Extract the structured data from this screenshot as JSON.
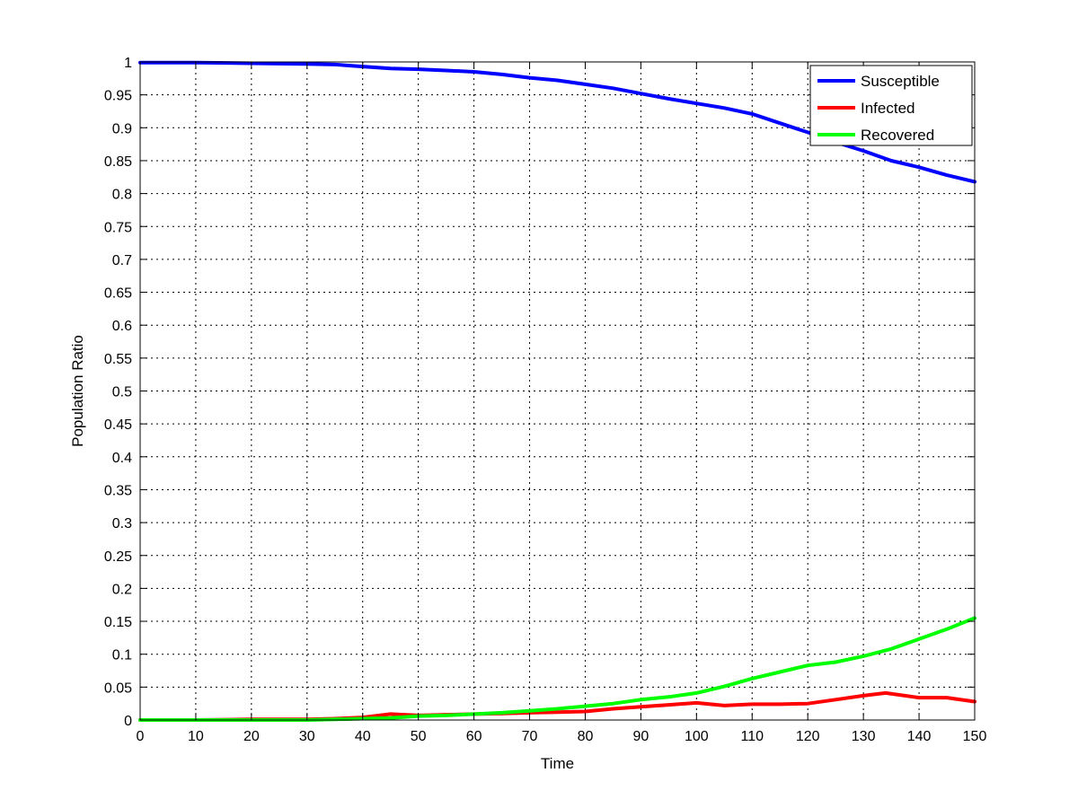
{
  "chart_data": {
    "type": "line",
    "title": "",
    "xlabel": "Time",
    "ylabel": "Population Ratio",
    "xlim": [
      0,
      150
    ],
    "ylim": [
      0,
      1
    ],
    "x_ticks": [
      0,
      10,
      20,
      30,
      40,
      50,
      60,
      70,
      80,
      90,
      100,
      110,
      120,
      130,
      140,
      150
    ],
    "y_ticks": [
      0,
      0.05,
      0.1,
      0.15,
      0.2,
      0.25,
      0.3,
      0.35,
      0.4,
      0.45,
      0.5,
      0.55,
      0.6,
      0.65,
      0.7,
      0.75,
      0.8,
      0.85,
      0.9,
      0.95,
      1
    ],
    "x_tick_labels": [
      "0",
      "10",
      "20",
      "30",
      "40",
      "50",
      "60",
      "70",
      "80",
      "90",
      "100",
      "110",
      "120",
      "130",
      "140",
      "150"
    ],
    "y_tick_labels": [
      "0",
      "0.05",
      "0.1",
      "0.15",
      "0.2",
      "0.25",
      "0.3",
      "0.35",
      "0.4",
      "0.45",
      "0.5",
      "0.55",
      "0.6",
      "0.65",
      "0.7",
      "0.75",
      "0.8",
      "0.85",
      "0.9",
      "0.95",
      "1"
    ],
    "grid": true,
    "legend_position": "top-right",
    "series": [
      {
        "name": "Susceptible",
        "color": "#0000ff",
        "x": [
          0,
          10,
          20,
          30,
          35,
          40,
          45,
          50,
          55,
          60,
          65,
          70,
          75,
          80,
          85,
          90,
          95,
          100,
          105,
          110,
          115,
          120,
          125,
          130,
          135,
          140,
          145,
          150
        ],
        "y": [
          0.999,
          0.999,
          0.998,
          0.997,
          0.996,
          0.993,
          0.99,
          0.989,
          0.987,
          0.985,
          0.981,
          0.976,
          0.972,
          0.966,
          0.96,
          0.952,
          0.944,
          0.937,
          0.93,
          0.921,
          0.907,
          0.893,
          0.878,
          0.865,
          0.85,
          0.84,
          0.828,
          0.818
        ]
      },
      {
        "name": "Infected",
        "color": "#ff0000",
        "x": [
          0,
          10,
          20,
          30,
          35,
          40,
          45,
          50,
          55,
          60,
          65,
          70,
          75,
          80,
          85,
          90,
          95,
          100,
          105,
          110,
          115,
          120,
          125,
          130,
          134,
          140,
          145,
          150
        ],
        "y": [
          0.0,
          0.0,
          0.001,
          0.001,
          0.002,
          0.004,
          0.009,
          0.007,
          0.008,
          0.009,
          0.01,
          0.011,
          0.012,
          0.013,
          0.017,
          0.02,
          0.023,
          0.026,
          0.022,
          0.024,
          0.024,
          0.025,
          0.031,
          0.037,
          0.041,
          0.034,
          0.034,
          0.028
        ]
      },
      {
        "name": "Recovered",
        "color": "#00ff00",
        "x": [
          0,
          10,
          20,
          30,
          35,
          40,
          45,
          50,
          55,
          60,
          65,
          70,
          75,
          80,
          85,
          90,
          95,
          100,
          105,
          110,
          115,
          120,
          125,
          130,
          135,
          140,
          145,
          150
        ],
        "y": [
          0.0,
          0.0,
          0.0,
          0.0,
          0.001,
          0.002,
          0.003,
          0.006,
          0.007,
          0.009,
          0.011,
          0.014,
          0.017,
          0.021,
          0.025,
          0.031,
          0.035,
          0.041,
          0.051,
          0.063,
          0.073,
          0.083,
          0.088,
          0.097,
          0.108,
          0.123,
          0.138,
          0.155
        ]
      }
    ]
  }
}
